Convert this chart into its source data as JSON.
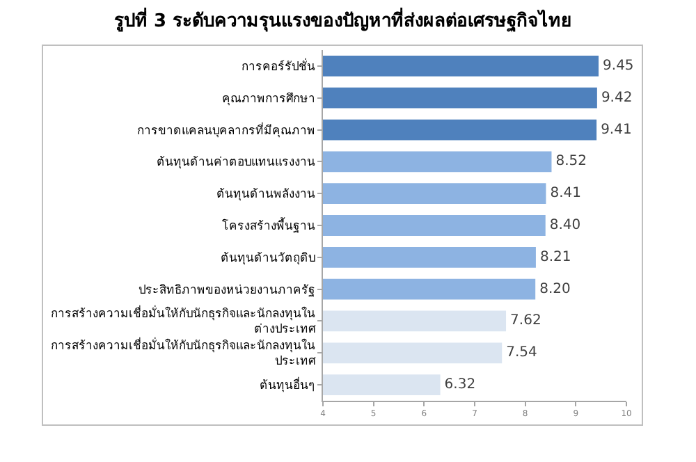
{
  "chart_data": {
    "type": "bar",
    "orientation": "horizontal",
    "title": "รูปที่ 3 ระดับความรุนแรงของปัญหาที่ส่งผลต่อเศรษฐกิจไทย",
    "categories": [
      "การคอร์รัปชั่น",
      "คุณภาพการศึกษา",
      "การขาดแคลนบุคลากรที่มีคุณภาพ",
      "ต้นทุนด้านค่าตอบแทนแรงงาน",
      "ต้นทุนด้านพลังงาน",
      "โครงสร้างพื้นฐาน",
      "ต้นทุนด้านวัตถุดิบ",
      "ประสิทธิภาพของหน่วยงานภาครัฐ",
      "การสร้างความเชื่อมั่นให้กับนักธุรกิจและนักลงทุนใน\nต่างประเทศ",
      "การสร้างความเชื่อมั่นให้กับนักธุรกิจและนักลงทุนใน\nประเทศ",
      "ต้นทุนอื่นๆ"
    ],
    "values": [
      9.45,
      9.42,
      9.41,
      8.52,
      8.41,
      8.4,
      8.21,
      8.2,
      7.62,
      7.54,
      6.32
    ],
    "colors": [
      "#4f81bd",
      "#4f81bd",
      "#4f81bd",
      "#8db3e2",
      "#8db3e2",
      "#8db3e2",
      "#8db3e2",
      "#8db3e2",
      "#dbe5f1",
      "#dbe5f1",
      "#dbe5f1"
    ],
    "value_labels": [
      "9.45",
      "9.42",
      "9.41",
      "8.52",
      "8.41",
      "8.40",
      "8.21",
      "8.20",
      "7.62",
      "7.54",
      "6.32"
    ],
    "xlim": [
      4,
      10
    ],
    "xticks": [
      4,
      5,
      6,
      7,
      8,
      9,
      10
    ]
  }
}
